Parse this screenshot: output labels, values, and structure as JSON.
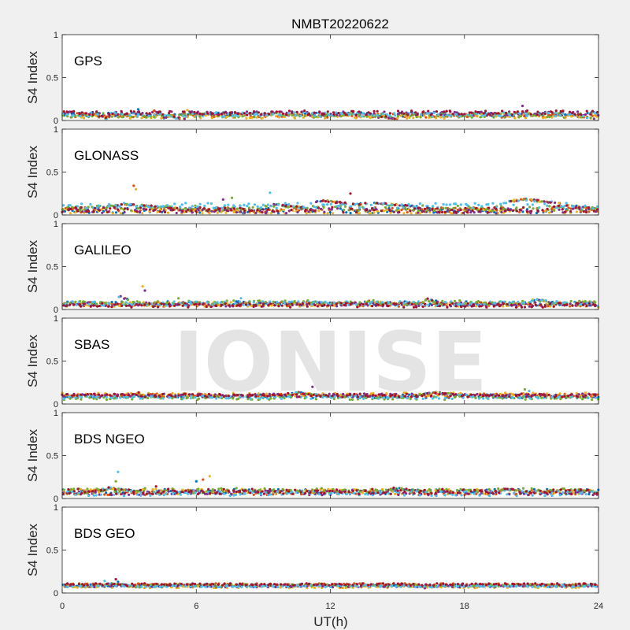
{
  "chart_data": {
    "type": "scatter",
    "title": "NMBT20220622",
    "xlabel": "UT(h)",
    "ylabel": "S4 Index",
    "xlim": [
      0,
      24
    ],
    "ylim": [
      0,
      1
    ],
    "xticks": [
      "0",
      "6",
      "12",
      "18",
      "24"
    ],
    "yticks": [
      "0",
      "0.5",
      "1"
    ],
    "watermark": "IONISE",
    "series_colors": [
      "#0072BD",
      "#D95319",
      "#EDB120",
      "#7E2F8E",
      "#77AC30",
      "#4DBEEE",
      "#A2142F"
    ],
    "panels": [
      {
        "name": "GPS",
        "baseline": [
          0.07,
          0.06,
          0.05,
          0.08,
          0.06,
          0.07,
          0.09
        ],
        "spread": 0.025,
        "bumps": [
          [
            1.6,
            2.0,
            0.06
          ],
          [
            4.5,
            5.5,
            0.05
          ],
          [
            14.0,
            15.0,
            0.05
          ],
          [
            23.0,
            24.0,
            0.05
          ]
        ],
        "spikes": [
          [
            3.4,
            0.13
          ],
          [
            4.1,
            0.11
          ],
          [
            5.6,
            0.12
          ],
          [
            20.6,
            0.17
          ]
        ]
      },
      {
        "name": "GLONASS",
        "baseline": [
          0.05,
          0.06,
          0.04,
          0.05,
          0.08,
          0.11,
          0.06
        ],
        "spread": 0.03,
        "bumps": [
          [
            1.9,
            5.2,
            0.12
          ],
          [
            9.0,
            11.0,
            0.12
          ],
          [
            11.3,
            12.8,
            0.17
          ],
          [
            13.0,
            16.0,
            0.14
          ],
          [
            20.0,
            22.3,
            0.18
          ],
          [
            22.0,
            24.0,
            0.11
          ]
        ],
        "spikes": [
          [
            3.2,
            0.34
          ],
          [
            3.3,
            0.3
          ],
          [
            7.2,
            0.18
          ],
          [
            7.6,
            0.2
          ],
          [
            9.3,
            0.26
          ],
          [
            12.9,
            0.25
          ]
        ]
      },
      {
        "name": "GALILEO",
        "baseline": [
          0.07,
          0.06,
          0.06,
          0.06,
          0.08,
          0.07,
          0.05
        ],
        "spread": 0.025,
        "bumps": [
          [
            2.5,
            3.0,
            0.15
          ],
          [
            13.5,
            15.0,
            0.1
          ],
          [
            16.0,
            17.0,
            0.12
          ],
          [
            21.0,
            22.0,
            0.12
          ],
          [
            23.5,
            24.0,
            0.07
          ]
        ],
        "spikes": [
          [
            3.6,
            0.27
          ],
          [
            3.7,
            0.22
          ],
          [
            5.2,
            0.13
          ],
          [
            8.0,
            0.13
          ]
        ]
      },
      {
        "name": "SBAS",
        "baseline": [
          0.09,
          0.1,
          0.11,
          0.1,
          0.07,
          0.08,
          0.1
        ],
        "spread": 0.02,
        "bumps": [
          [
            3.2,
            3.6,
            0.14
          ],
          [
            10.0,
            12.0,
            0.13
          ],
          [
            16.0,
            18.5,
            0.13
          ]
        ],
        "spikes": [
          [
            11.2,
            0.2
          ],
          [
            20.7,
            0.17
          ],
          [
            20.9,
            0.15
          ]
        ]
      },
      {
        "name": "BDS NGEO",
        "baseline": [
          0.08,
          0.07,
          0.08,
          0.07,
          0.09,
          0.06,
          0.08
        ],
        "spread": 0.03,
        "bumps": [
          [
            1.5,
            3.5,
            0.12
          ],
          [
            5.5,
            7.0,
            0.1
          ],
          [
            14.5,
            16.0,
            0.12
          ],
          [
            19.5,
            21.0,
            0.11
          ],
          [
            23.0,
            24.0,
            0.1
          ]
        ],
        "spikes": [
          [
            2.4,
            0.2
          ],
          [
            2.5,
            0.31
          ],
          [
            4.2,
            0.14
          ],
          [
            6.0,
            0.2
          ],
          [
            6.3,
            0.22
          ],
          [
            6.6,
            0.26
          ]
        ]
      },
      {
        "name": "BDS GEO",
        "baseline": [
          0.09,
          0.1,
          0.07,
          0.08,
          0.09,
          0.08,
          0.1
        ],
        "spread": 0.012,
        "bumps": [
          [
            1.5,
            3.5,
            0.11
          ],
          [
            15.5,
            16.3,
            0.1
          ]
        ],
        "spikes": [
          [
            1.9,
            0.14
          ],
          [
            2.4,
            0.16
          ],
          [
            2.5,
            0.13
          ],
          [
            3.4,
            0.11
          ]
        ]
      }
    ]
  }
}
